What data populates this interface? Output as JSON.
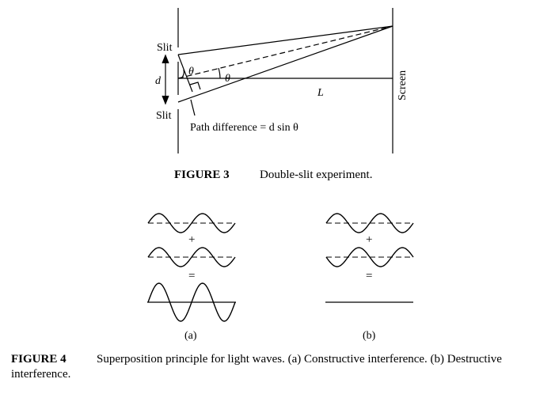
{
  "figure3": {
    "labels": {
      "slit_top": "Slit",
      "slit_bottom": "Slit",
      "d": "d",
      "theta_small": "θ",
      "theta_large": "θ",
      "L": "L",
      "screen": "Screen",
      "path_difference": "Path difference = d sin θ"
    },
    "caption": {
      "label": "FIGURE 3",
      "text": "Double-slit experiment."
    }
  },
  "figure4": {
    "panel_a": {
      "plus": "+",
      "equals": "=",
      "label": "(a)"
    },
    "panel_b": {
      "plus": "+",
      "equals": "=",
      "label": "(b)"
    },
    "caption": {
      "label": "FIGURE 4",
      "text": "Superposition principle for light waves. (a) Constructive interference. (b) Destructive interference."
    }
  }
}
